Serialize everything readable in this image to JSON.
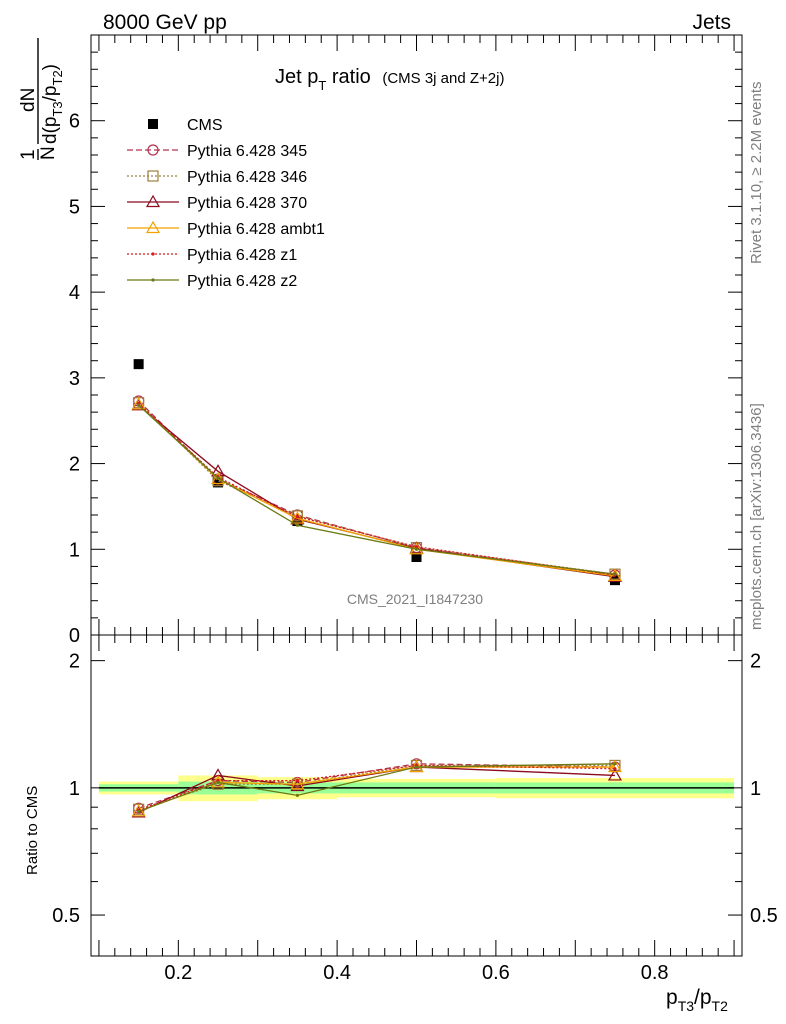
{
  "header": {
    "left": "8000 GeV pp",
    "right": "Jets"
  },
  "side_labels": {
    "rivet": "Rivet 3.1.10, ≥ 2.2M events",
    "mcplots": "mcplots.cern.ch [arXiv:1306.3436]"
  },
  "analysis_id": "CMS_2021_I1847230",
  "chart_data": [
    {
      "type": "scatter",
      "title": {
        "main": "Jet p",
        "sub": "T",
        "tail": " ratio",
        "small": "(CMS 3j and Z+2j)"
      },
      "ylabel": {
        "num": "1",
        "den": "N",
        "frac_num": "dN",
        "frac_den": "d(p",
        "s1": "T3",
        "mid": "/p",
        "s2": "T2",
        "close": ")"
      },
      "xlim": [
        0.09,
        0.91
      ],
      "ylim": [
        0,
        7
      ],
      "yticks": [
        "0",
        "1",
        "2",
        "3",
        "4",
        "5",
        "6"
      ],
      "x": [
        0.15,
        0.25,
        0.35,
        0.5,
        0.75
      ],
      "legend_position": "top-left",
      "series": [
        {
          "name": "CMS",
          "color": "#000000",
          "marker": "square",
          "dash": "none",
          "values": [
            3.16,
            1.78,
            1.33,
            0.91,
            0.64
          ]
        },
        {
          "name": "Pythia 6.428 345",
          "color": "#b2334c",
          "marker": "circle",
          "dash": "6,3",
          "values": [
            2.73,
            1.82,
            1.4,
            1.02,
            0.7
          ]
        },
        {
          "name": "Pythia 6.428 346",
          "color": "#a07e3c",
          "marker": "square-open",
          "dash": "2,2",
          "values": [
            2.71,
            1.8,
            1.39,
            1.02,
            0.71
          ]
        },
        {
          "name": "Pythia 6.428 370",
          "color": "#8b0a1e",
          "marker": "triangle",
          "dash": "none",
          "values": [
            2.68,
            1.91,
            1.35,
            1.01,
            0.68
          ]
        },
        {
          "name": "Pythia 6.428 ambt1",
          "color": "#f2a200",
          "marker": "triangle",
          "dash": "none",
          "values": [
            2.69,
            1.82,
            1.36,
            1.0,
            0.69
          ]
        },
        {
          "name": "Pythia 6.428 z1",
          "color": "#d7191c",
          "marker": "dot",
          "dash": "2,2",
          "values": [
            2.7,
            1.84,
            1.38,
            1.03,
            0.7
          ]
        },
        {
          "name": "Pythia 6.428 z2",
          "color": "#6b7a12",
          "marker": "dot",
          "dash": "none",
          "values": [
            2.68,
            1.83,
            1.28,
            1.0,
            0.71
          ]
        }
      ]
    },
    {
      "type": "line",
      "ylabel": "Ratio to CMS",
      "xlabel": {
        "p1": "p",
        "s1": "T3",
        "mid": "/p",
        "s2": "T2"
      },
      "xlim": [
        0.09,
        0.91
      ],
      "ylim": [
        0.4,
        2.3
      ],
      "log_y": true,
      "yticks": [
        "0.5",
        "1",
        "2"
      ],
      "xticks": [
        "0.2",
        "0.4",
        "0.6",
        "0.8"
      ],
      "x": [
        0.15,
        0.25,
        0.35,
        0.5,
        0.75
      ],
      "band": {
        "edges": [
          0.1,
          0.2,
          0.3,
          0.4,
          0.6,
          0.9
        ],
        "inner": [
          0.02,
          0.035,
          0.03,
          0.03,
          0.03
        ],
        "outer": [
          0.035,
          0.07,
          0.06,
          0.05,
          0.055
        ]
      },
      "series": [
        {
          "name": "Pythia 6.428 345",
          "color": "#b2334c",
          "marker": "circle",
          "dash": "6,3",
          "values": [
            0.895,
            1.04,
            1.03,
            1.14,
            1.12
          ]
        },
        {
          "name": "Pythia 6.428 346",
          "color": "#a07e3c",
          "marker": "square-open",
          "dash": "2,2",
          "values": [
            0.89,
            1.02,
            1.02,
            1.13,
            1.13
          ]
        },
        {
          "name": "Pythia 6.428 370",
          "color": "#8b0a1e",
          "marker": "triangle",
          "dash": "none",
          "values": [
            0.875,
            1.07,
            1.01,
            1.12,
            1.07
          ]
        },
        {
          "name": "Pythia 6.428 ambt1",
          "color": "#f2a200",
          "marker": "triangle",
          "dash": "none",
          "values": [
            0.88,
            1.03,
            1.02,
            1.12,
            1.12
          ]
        },
        {
          "name": "Pythia 6.428 z1",
          "color": "#d7191c",
          "marker": "dot",
          "dash": "2,2",
          "values": [
            0.885,
            1.04,
            1.04,
            1.13,
            1.11
          ]
        },
        {
          "name": "Pythia 6.428 z2",
          "color": "#6b7a12",
          "marker": "dot",
          "dash": "none",
          "values": [
            0.88,
            1.03,
            0.96,
            1.12,
            1.14
          ]
        }
      ]
    }
  ]
}
